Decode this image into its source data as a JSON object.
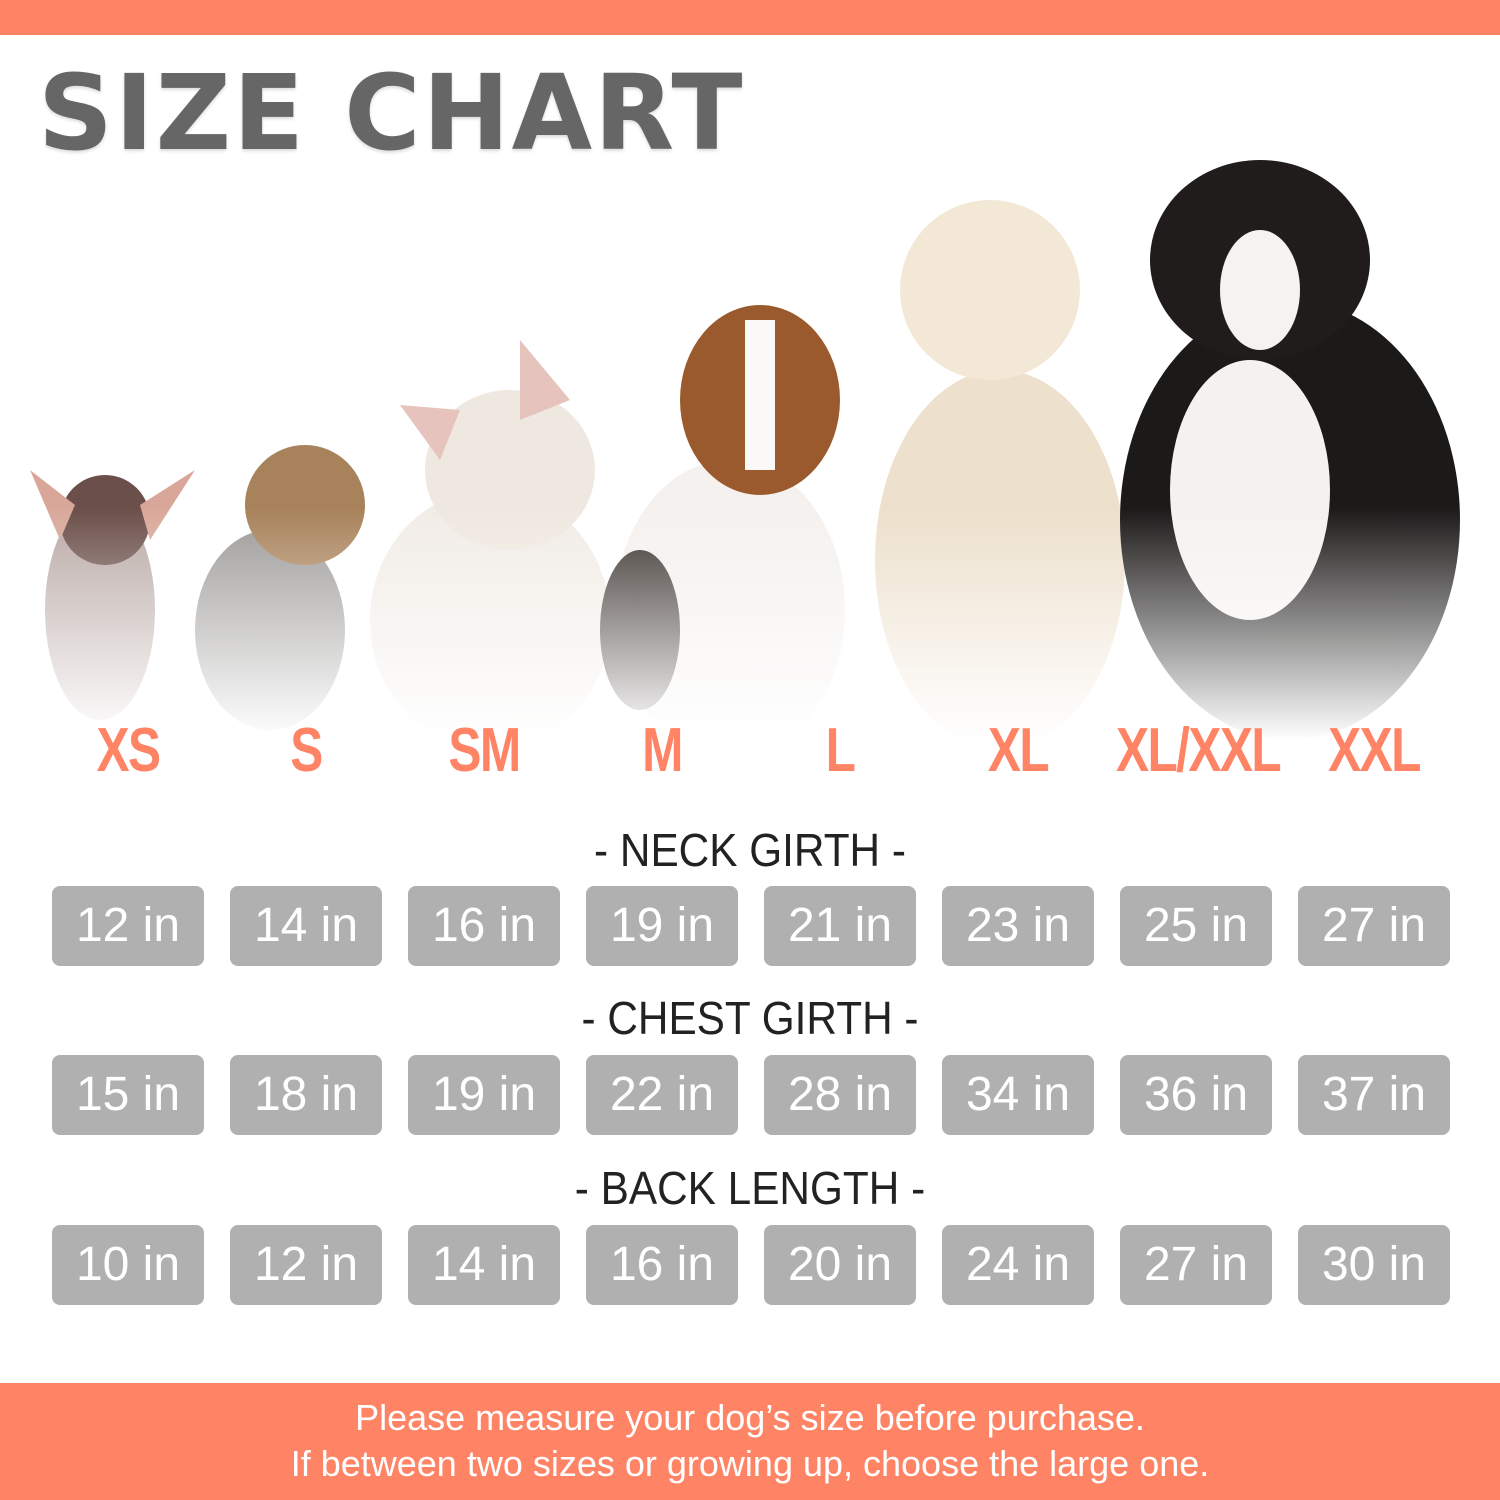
{
  "title": "SIZE CHART",
  "colors": {
    "accent": "#FF8466",
    "pill": "#B0B0B0",
    "heading": "#222222",
    "title": "#666666"
  },
  "sizes": [
    "XS",
    "S",
    "SM",
    "M",
    "L",
    "XL",
    "XL/XXL",
    "XXL"
  ],
  "measurements": [
    {
      "label": "- NECK GIRTH -",
      "values": [
        "12 in",
        "14 in",
        "16 in",
        "19 in",
        "21 in",
        "23 in",
        "25 in",
        "27 in"
      ]
    },
    {
      "label": "- CHEST GIRTH -",
      "values": [
        "15 in",
        "18 in",
        "19 in",
        "22 in",
        "28 in",
        "34 in",
        "36 in",
        "37 in"
      ]
    },
    {
      "label": "- BACK LENGTH -",
      "values": [
        "10 in",
        "12 in",
        "14 in",
        "16 in",
        "20 in",
        "24 in",
        "27 in",
        "30 in"
      ]
    }
  ],
  "footer": {
    "line1": "Please measure your dog’s size before purchase.",
    "line2": "If between two sizes or growing up, choose the large one."
  }
}
